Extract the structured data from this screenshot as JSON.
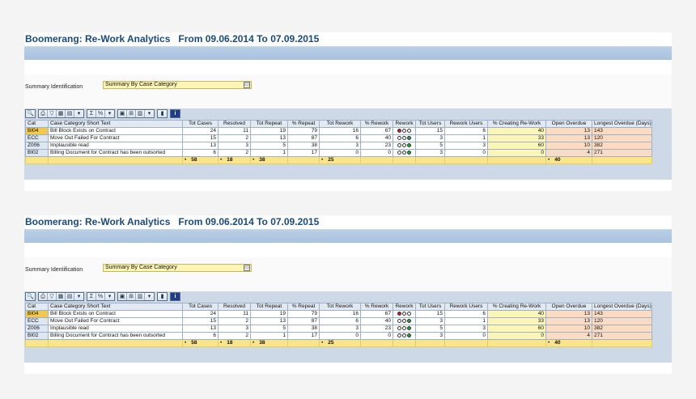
{
  "reports": [
    {
      "title": "Boomerang: Re-Work Analytics   From 09.06.2014 To 07.09.2015",
      "filter": {
        "label": "Summary Identification",
        "value": "Summary By Case Category"
      },
      "columns": [
        "Cat",
        "Case Category Short Text",
        "Tot Cases",
        "Resolved",
        "Tot Repeat",
        "% Repeat",
        "Tot Rework",
        "% Rework",
        "Rework",
        "Tot Users",
        "Rework Users",
        "% Creating Re-Work",
        "Open Overdue",
        "Longest Overdue (Days)"
      ],
      "rows": [
        {
          "cat": "BI04",
          "text": "Bill Block Exists on Contract",
          "tot_cases": "24",
          "resolved": "11",
          "tot_repeat": "19",
          "pct_repeat": "79",
          "tot_rework": "16",
          "pct_rework": "67",
          "rework_light": "red",
          "tot_users": "15",
          "rework_users": "6",
          "pct_creating": "40",
          "open_overdue": "13",
          "longest_overdue": "143"
        },
        {
          "cat": "ECC",
          "text": "Move Out Failed For Contract",
          "tot_cases": "15",
          "resolved": "2",
          "tot_repeat": "13",
          "pct_repeat": "87",
          "tot_rework": "6",
          "pct_rework": "40",
          "rework_light": "green",
          "tot_users": "3",
          "rework_users": "1",
          "pct_creating": "33",
          "open_overdue": "13",
          "longest_overdue": "120"
        },
        {
          "cat": "Z006",
          "text": "Implausible read",
          "tot_cases": "13",
          "resolved": "3",
          "tot_repeat": "5",
          "pct_repeat": "38",
          "tot_rework": "3",
          "pct_rework": "23",
          "rework_light": "green",
          "tot_users": "5",
          "rework_users": "3",
          "pct_creating": "60",
          "open_overdue": "10",
          "longest_overdue": "382"
        },
        {
          "cat": "BI02",
          "text": "Billing Document for Contract has been outsorted",
          "tot_cases": "6",
          "resolved": "2",
          "tot_repeat": "1",
          "pct_repeat": "17",
          "tot_rework": "0",
          "pct_rework": "0",
          "rework_light": "green",
          "tot_users": "3",
          "rework_users": "0",
          "pct_creating": "0",
          "open_overdue": "4",
          "longest_overdue": "271"
        }
      ],
      "totals": {
        "tot_cases": "58",
        "resolved": "18",
        "tot_repeat": "38",
        "tot_rework": "25",
        "open_overdue": "40"
      },
      "bullet": "•"
    },
    {
      "title": "Boomerang: Re-Work Analytics   From 09.06.2014 To 07.09.2015",
      "filter": {
        "label": "Summary Identification",
        "value": "Summary By Case Category"
      },
      "columns": [
        "Cat",
        "Case Category Short Text",
        "Tot Cases",
        "Resolved",
        "Tot Repeat",
        "% Repeat",
        "Tot Rework",
        "% Rework",
        "Rework",
        "Tot Users",
        "Rework Users",
        "% Creating Re-Work",
        "Open Overdue",
        "Longest Overdue (Days)"
      ],
      "rows": [
        {
          "cat": "BI04",
          "text": "Bill Block Exists on Contract",
          "tot_cases": "24",
          "resolved": "11",
          "tot_repeat": "19",
          "pct_repeat": "79",
          "tot_rework": "16",
          "pct_rework": "67",
          "rework_light": "red",
          "tot_users": "15",
          "rework_users": "6",
          "pct_creating": "40",
          "open_overdue": "13",
          "longest_overdue": "143"
        },
        {
          "cat": "ECC",
          "text": "Move Out Failed For Contract",
          "tot_cases": "15",
          "resolved": "2",
          "tot_repeat": "13",
          "pct_repeat": "87",
          "tot_rework": "6",
          "pct_rework": "40",
          "rework_light": "green",
          "tot_users": "3",
          "rework_users": "1",
          "pct_creating": "33",
          "open_overdue": "13",
          "longest_overdue": "120"
        },
        {
          "cat": "Z006",
          "text": "Implausible read",
          "tot_cases": "13",
          "resolved": "3",
          "tot_repeat": "5",
          "pct_repeat": "38",
          "tot_rework": "3",
          "pct_rework": "23",
          "rework_light": "green",
          "tot_users": "5",
          "rework_users": "3",
          "pct_creating": "60",
          "open_overdue": "10",
          "longest_overdue": "382"
        },
        {
          "cat": "BI02",
          "text": "Billing Document for Contract has been outsorted",
          "tot_cases": "6",
          "resolved": "2",
          "tot_repeat": "1",
          "pct_repeat": "17",
          "tot_rework": "0",
          "pct_rework": "0",
          "rework_light": "green",
          "tot_users": "3",
          "rework_users": "0",
          "pct_creating": "0",
          "open_overdue": "4",
          "longest_overdue": "271"
        }
      ],
      "totals": {
        "tot_cases": "58",
        "resolved": "18",
        "tot_repeat": "38",
        "tot_rework": "25",
        "open_overdue": "40"
      },
      "bullet": "•"
    }
  ],
  "toolbar_icons": [
    "details-icon",
    "print-icon",
    "filter-icon",
    "find-icon",
    "subtotal-icon",
    "filter-set-icon",
    "sum-icon",
    "sort-icon",
    "export-icon",
    "spreadsheet-icon",
    "layout-icon",
    "change-layout-icon",
    "graphic-icon",
    "info-icon"
  ],
  "colors": {
    "title": "#1a4a7a",
    "header_bar": "#b9cfe6",
    "content_bg": "#cdd9e7",
    "yellow_cell": "#fbf6b8",
    "orange_cell": "#fbdcc2",
    "total_row": "#fbe58a",
    "highlight_key": "#f2c94c"
  }
}
